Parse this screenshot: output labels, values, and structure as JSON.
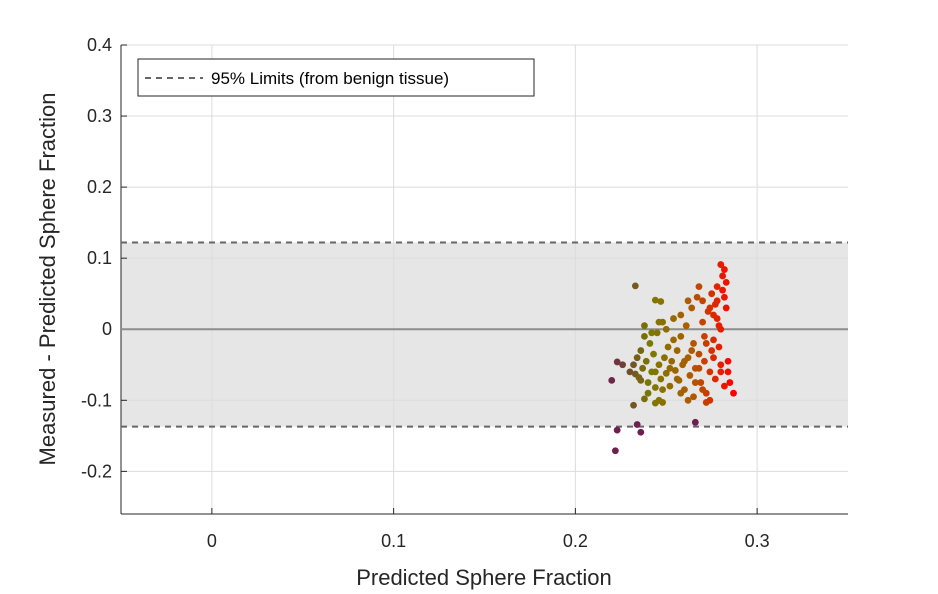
{
  "chart_data": {
    "type": "scatter",
    "title": "",
    "xlabel": "Predicted Sphere Fraction",
    "ylabel": "Measured - Predicted Sphere Fraction",
    "xlim": [
      -0.05,
      0.35
    ],
    "ylim": [
      -0.26,
      0.4
    ],
    "xticks": [
      0,
      0.1,
      0.2,
      0.3
    ],
    "xtick_labels": [
      "0",
      "0.1",
      "0.2",
      "0.3"
    ],
    "yticks": [
      -0.2,
      -0.1,
      0,
      0.1,
      0.2,
      0.3,
      0.4
    ],
    "ytick_labels": [
      "-0.2",
      "-0.1",
      "0",
      "0.1",
      "0.2",
      "0.3",
      "0.4"
    ],
    "grid": true,
    "legend": {
      "placement": "top-left",
      "entries": [
        "95% Limits (from benign tissue)"
      ]
    },
    "limits": {
      "upper": 0.122,
      "lower": -0.137,
      "mean": 0.0
    },
    "band_color": "#e6e6e6",
    "limit_line_color": "#666666",
    "mean_line_color": "#8c8c8c",
    "point_color_map": [
      "#6e1f4f",
      "#7a7a00",
      "#b05a00",
      "#ff0000"
    ],
    "points": [
      [
        0.222,
        -0.171
      ],
      [
        0.223,
        -0.142
      ],
      [
        0.22,
        -0.072
      ],
      [
        0.223,
        -0.046
      ],
      [
        0.226,
        -0.05
      ],
      [
        0.234,
        -0.134
      ],
      [
        0.236,
        -0.145
      ],
      [
        0.232,
        -0.107
      ],
      [
        0.238,
        -0.098
      ],
      [
        0.244,
        -0.104
      ],
      [
        0.248,
        -0.103
      ],
      [
        0.246,
        -0.1
      ],
      [
        0.233,
        0.061
      ],
      [
        0.244,
        0.041
      ],
      [
        0.247,
        0.039
      ],
      [
        0.23,
        -0.06
      ],
      [
        0.232,
        -0.05
      ],
      [
        0.233,
        -0.063
      ],
      [
        0.234,
        -0.04
      ],
      [
        0.235,
        -0.068
      ],
      [
        0.236,
        -0.03
      ],
      [
        0.237,
        -0.055
      ],
      [
        0.238,
        -0.01
      ],
      [
        0.239,
        -0.045
      ],
      [
        0.24,
        -0.075
      ],
      [
        0.241,
        -0.02
      ],
      [
        0.242,
        -0.06
      ],
      [
        0.243,
        -0.035
      ],
      [
        0.244,
        -0.082
      ],
      [
        0.245,
        -0.005
      ],
      [
        0.246,
        -0.05
      ],
      [
        0.247,
        -0.07
      ],
      [
        0.248,
        0.01
      ],
      [
        0.249,
        -0.04
      ],
      [
        0.25,
        -0.062
      ],
      [
        0.251,
        -0.025
      ],
      [
        0.252,
        -0.08
      ],
      [
        0.253,
        -0.045
      ],
      [
        0.254,
        0.015
      ],
      [
        0.255,
        -0.058
      ],
      [
        0.256,
        -0.03
      ],
      [
        0.257,
        -0.072
      ],
      [
        0.258,
        -0.01
      ],
      [
        0.259,
        -0.05
      ],
      [
        0.26,
        -0.085
      ],
      [
        0.261,
        0.005
      ],
      [
        0.262,
        -0.04
      ],
      [
        0.263,
        -0.065
      ],
      [
        0.264,
        0.03
      ],
      [
        0.265,
        -0.02
      ],
      [
        0.266,
        -0.055
      ],
      [
        0.267,
        0.045
      ],
      [
        0.268,
        -0.035
      ],
      [
        0.269,
        -0.075
      ],
      [
        0.27,
        0.01
      ],
      [
        0.271,
        -0.045
      ],
      [
        0.272,
        -0.09
      ],
      [
        0.273,
        0.025
      ],
      [
        0.274,
        -0.06
      ],
      [
        0.275,
        0.05
      ],
      [
        0.276,
        -0.015
      ],
      [
        0.277,
        -0.07
      ],
      [
        0.278,
        0.06
      ],
      [
        0.279,
        0.005
      ],
      [
        0.28,
        -0.05
      ],
      [
        0.281,
        0.075
      ],
      [
        0.282,
        -0.08
      ],
      [
        0.283,
        0.03
      ],
      [
        0.284,
        -0.06
      ],
      [
        0.285,
        -0.075
      ],
      [
        0.287,
        -0.09
      ],
      [
        0.28,
        0.091
      ],
      [
        0.282,
        0.084
      ],
      [
        0.278,
        0.04
      ],
      [
        0.276,
        0.02
      ],
      [
        0.28,
        0.0
      ],
      [
        0.279,
        -0.025
      ],
      [
        0.281,
        0.055
      ],
      [
        0.283,
        0.066
      ],
      [
        0.277,
        0.035
      ],
      [
        0.274,
        -0.1
      ],
      [
        0.272,
        -0.103
      ],
      [
        0.266,
        -0.131
      ],
      [
        0.265,
        -0.095
      ],
      [
        0.27,
        -0.085
      ],
      [
        0.268,
        0.06
      ],
      [
        0.262,
        0.04
      ],
      [
        0.258,
        0.02
      ],
      [
        0.254,
        -0.015
      ],
      [
        0.25,
        0.0
      ],
      [
        0.246,
        0.01
      ],
      [
        0.242,
        -0.005
      ],
      [
        0.238,
        0.005
      ],
      [
        0.236,
        -0.072
      ],
      [
        0.24,
        -0.09
      ],
      [
        0.244,
        -0.06
      ],
      [
        0.248,
        -0.085
      ],
      [
        0.252,
        -0.055
      ],
      [
        0.256,
        -0.07
      ],
      [
        0.26,
        -0.045
      ],
      [
        0.264,
        -0.03
      ],
      [
        0.268,
        -0.055
      ],
      [
        0.272,
        -0.02
      ],
      [
        0.276,
        -0.04
      ],
      [
        0.28,
        -0.06
      ],
      [
        0.284,
        -0.045
      ],
      [
        0.262,
        -0.1
      ],
      [
        0.258,
        -0.09
      ],
      [
        0.266,
        -0.075
      ],
      [
        0.27,
        0.04
      ],
      [
        0.274,
        0.03
      ],
      [
        0.278,
        0.015
      ],
      [
        0.282,
        0.045
      ],
      [
        0.275,
        -0.03
      ],
      [
        0.271,
        -0.01
      ]
    ]
  }
}
